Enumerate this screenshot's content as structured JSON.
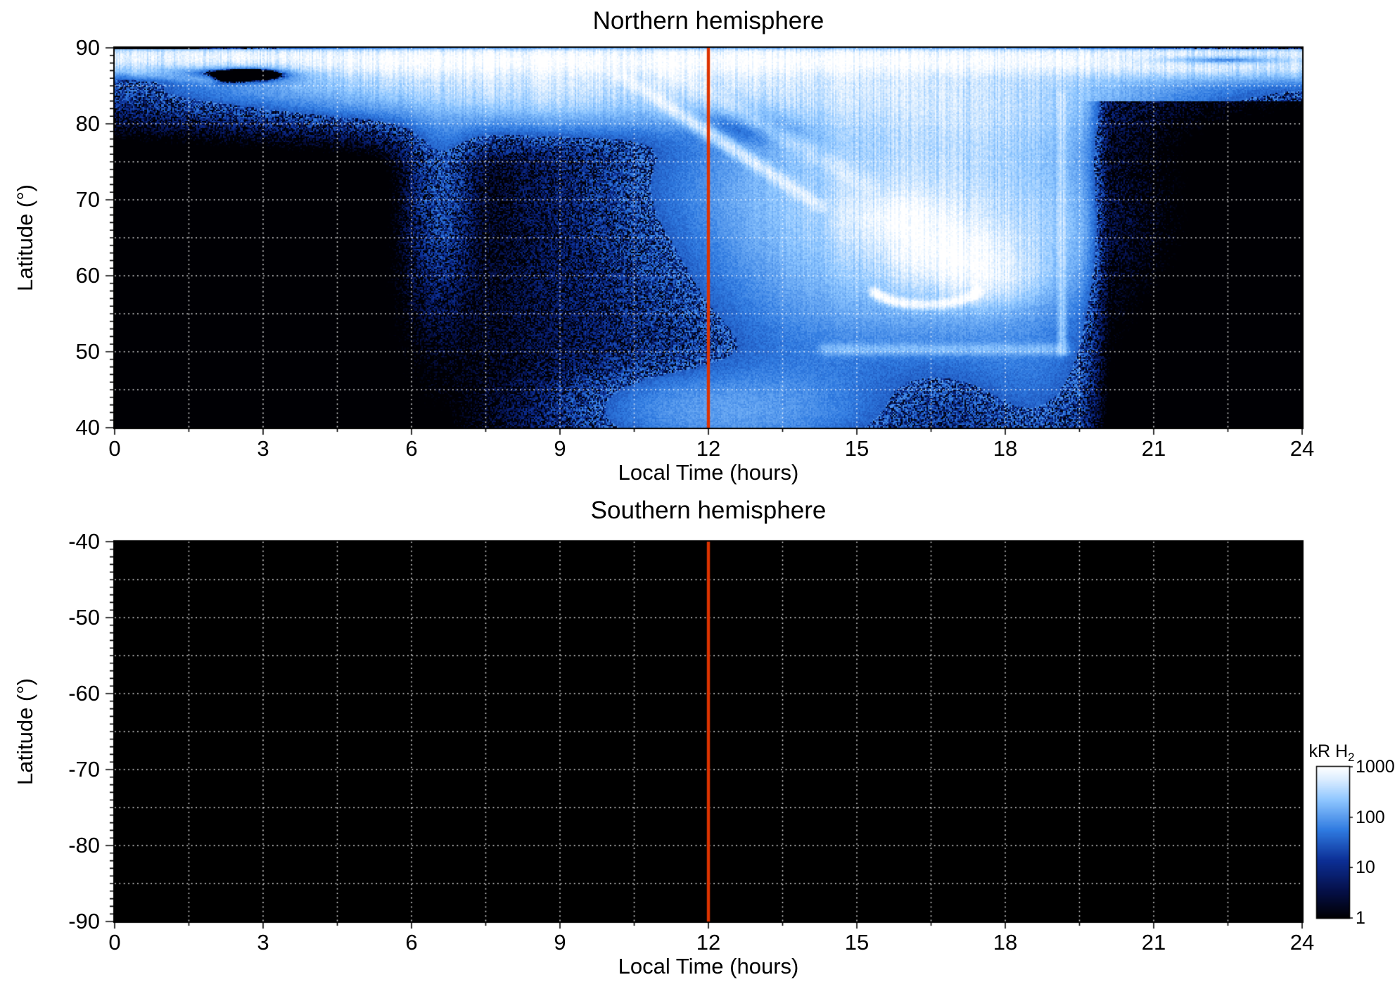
{
  "figure": {
    "background": "#ffffff",
    "units": "kR H2",
    "colormap": [
      {
        "t": 0.0,
        "c": "#000004"
      },
      {
        "t": 0.18,
        "c": "#05104a"
      },
      {
        "t": 0.38,
        "c": "#0c2f96"
      },
      {
        "t": 0.58,
        "c": "#2f7ae0"
      },
      {
        "t": 0.78,
        "c": "#8ec6ff"
      },
      {
        "t": 0.92,
        "c": "#ddeeff"
      },
      {
        "t": 1.0,
        "c": "#ffffff"
      }
    ],
    "colorbar": {
      "label_main": "kR H",
      "label_sub": "2",
      "scale": "log",
      "min": 1,
      "max": 1000,
      "ticks": [
        "1000",
        "100",
        "10",
        "1"
      ]
    }
  },
  "chart_data": [
    {
      "type": "heatmap",
      "title": "Northern hemisphere",
      "xlabel": "Local Time (hours)",
      "ylabel": "Latitude (°)",
      "xlim": [
        0,
        24
      ],
      "ylim": [
        40,
        90
      ],
      "xticks": [
        0,
        3,
        6,
        9,
        12,
        15,
        18,
        21,
        24
      ],
      "yticks": [
        90,
        80,
        70,
        60,
        50,
        40
      ],
      "grid": {
        "x_step": 1.5,
        "y_step": 5,
        "style": "dotted",
        "color": "#ffffff"
      },
      "noon_line": {
        "x": 12,
        "color": "#dd3300"
      },
      "background": "#000000",
      "features": [
        {
          "type": "band",
          "y": 88.5,
          "sy": 1.3,
          "amp": 800
        },
        {
          "type": "band",
          "y": 90.7,
          "sy": 0.5,
          "amp": -1600
        },
        {
          "type": "gaussian",
          "x": 12.5,
          "y": 86.5,
          "sx": 5.5,
          "sy": 3.0,
          "amp": 320
        },
        {
          "type": "gaussian",
          "x": 9.3,
          "y": 85.0,
          "sx": 2.6,
          "sy": 2.6,
          "amp": 160
        },
        {
          "type": "gaussian",
          "x": 5.8,
          "y": 86.0,
          "sx": 2.4,
          "sy": 1.8,
          "amp": 110
        },
        {
          "type": "gaussian",
          "x": 7.0,
          "y": 83.5,
          "sx": 2.0,
          "sy": 1.6,
          "amp": 40
        },
        {
          "type": "gaussian",
          "x": 15.5,
          "y": 83.0,
          "sx": 2.6,
          "sy": 3.0,
          "amp": 260
        },
        {
          "type": "gaussian",
          "x": 17.5,
          "y": 80.0,
          "sx": 1.5,
          "sy": 4.0,
          "amp": 200
        },
        {
          "type": "gaussian",
          "x": 15.8,
          "y": 72.0,
          "sx": 2.2,
          "sy": 6.0,
          "amp": 260
        },
        {
          "type": "gaussian",
          "x": 17.2,
          "y": 65.0,
          "sx": 1.6,
          "sy": 6.0,
          "amp": 340
        },
        {
          "type": "gaussian",
          "x": 14.8,
          "y": 62.0,
          "sx": 1.6,
          "sy": 8.0,
          "amp": 110
        },
        {
          "type": "gaussian",
          "x": 16.9,
          "y": 63.0,
          "sx": 0.8,
          "sy": 2.4,
          "amp": 700
        },
        {
          "type": "gaussian",
          "x": 15.9,
          "y": 67.5,
          "sx": 0.7,
          "sy": 2.0,
          "amp": 520
        },
        {
          "type": "gaussian",
          "x": 17.6,
          "y": 59.5,
          "sx": 0.6,
          "sy": 2.0,
          "amp": 420
        },
        {
          "type": "streak",
          "x0": 10.2,
          "y0": 86.5,
          "x1": 14.3,
          "y1": 69.0,
          "amp": 430,
          "s": 0.55
        },
        {
          "type": "streak",
          "x0": 11.2,
          "y0": 87.0,
          "x1": 15.3,
          "y1": 71.5,
          "amp": 180,
          "s": 0.85
        },
        {
          "type": "streak",
          "x0": 19.15,
          "y0": 50.0,
          "x1": 19.15,
          "y1": 84.0,
          "amp": 170,
          "s": 0.35
        },
        {
          "type": "streak",
          "x0": 14.3,
          "y0": 50.3,
          "x1": 19.2,
          "y1": 50.3,
          "amp": 120,
          "s": 0.5
        },
        {
          "type": "streak",
          "x0": 0.3,
          "y0": 86.8,
          "x1": 2.0,
          "y1": 85.8,
          "amp": 120,
          "s": 0.5
        },
        {
          "type": "arc",
          "cx": 16.4,
          "cy": 58.6,
          "rx": 1.1,
          "ry": 2.4,
          "a0": 195,
          "a1": 345,
          "amp": 850,
          "s": 0.4
        },
        {
          "type": "gaussian",
          "x": 6.6,
          "y": 72.5,
          "sx": 0.34,
          "sy": 8.5,
          "amp": 22
        },
        {
          "type": "gaussian",
          "x": 6.7,
          "y": 80.0,
          "sx": 0.55,
          "sy": 2.5,
          "amp": 35
        },
        {
          "type": "gaussian",
          "x": 8.7,
          "y": 82.5,
          "sx": 1.3,
          "sy": 2.6,
          "amp": 60
        },
        {
          "type": "gaussian",
          "x": 12.8,
          "y": 41.5,
          "sx": 1.7,
          "sy": 3.2,
          "amp": 70
        },
        {
          "type": "gaussian",
          "x": 11.6,
          "y": 43.0,
          "sx": 1.3,
          "sy": 3.0,
          "amp": 40
        },
        {
          "type": "gaussian",
          "x": 18.6,
          "y": 46.0,
          "sx": 0.8,
          "sy": 7.0,
          "amp": 28
        },
        {
          "type": "gaussian",
          "x": 17.8,
          "y": 52.0,
          "sx": 1.4,
          "sy": 6.0,
          "amp": 30
        },
        {
          "type": "gaussian",
          "x": 14.2,
          "y": 56.0,
          "sx": 3.4,
          "sy": 11.0,
          "amp": 9
        },
        {
          "type": "gaussian",
          "x": 12.0,
          "y": 60.0,
          "sx": 1.8,
          "sy": 9.0,
          "amp": 7
        },
        {
          "type": "gaussian",
          "x": 12.6,
          "y": 74.0,
          "sx": 2.2,
          "sy": 5.0,
          "amp": 12
        },
        {
          "type": "gaussian",
          "x": 13.8,
          "y": 46.0,
          "sx": 1.2,
          "sy": 3.5,
          "amp": 25
        },
        {
          "type": "gaussian",
          "x": 2.9,
          "y": 87.0,
          "sx": 0.8,
          "sy": 0.9,
          "amp": -520
        },
        {
          "type": "gaussian",
          "x": 1.0,
          "y": 87.3,
          "sx": 1.1,
          "sy": 1.1,
          "amp": -300
        },
        {
          "type": "gaussian",
          "x": 22.4,
          "y": 88.4,
          "sx": 1.3,
          "sy": 0.45,
          "amp": -780
        },
        {
          "type": "gaussian",
          "x": 12.7,
          "y": 81.0,
          "sx": 0.6,
          "sy": 1.6,
          "amp": -140
        },
        {
          "type": "gaussian",
          "x": 13.4,
          "y": 79.0,
          "sx": 0.5,
          "sy": 1.3,
          "amp": -110
        },
        {
          "type": "xmask",
          "x": 19.45,
          "ymax": 83,
          "floor": 0.03,
          "ramp": 0.35
        }
      ]
    },
    {
      "type": "heatmap",
      "title": "Southern hemisphere",
      "xlabel": "Local Time (hours)",
      "ylabel": "Latitude (°)",
      "xlim": [
        0,
        24
      ],
      "ylim": [
        -90,
        -40
      ],
      "xticks": [
        0,
        3,
        6,
        9,
        12,
        15,
        18,
        21,
        24
      ],
      "yticks": [
        -40,
        -50,
        -60,
        -70,
        -80,
        -90
      ],
      "grid": {
        "x_step": 1.5,
        "y_step": 5,
        "style": "dotted",
        "color": "#ffffff"
      },
      "noon_line": {
        "x": 12,
        "color": "#dd3300"
      },
      "background": "#000000",
      "features": []
    }
  ]
}
